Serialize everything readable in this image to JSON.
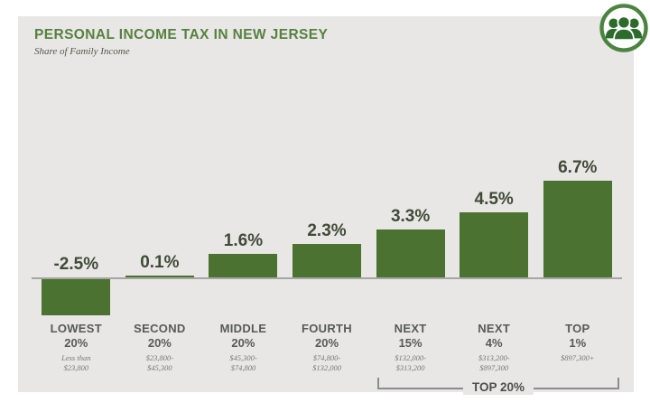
{
  "header": {
    "title": "PERSONAL INCOME TAX IN NEW JERSEY",
    "subtitle": "Share of Family Income"
  },
  "icon": {
    "name": "people-group-icon",
    "ring_color": "#4b8440",
    "glyph_color": "#2d6b2d"
  },
  "colors": {
    "card_background": "#e8e7e5",
    "bar_green": "#4b7231",
    "title_green": "#56813f",
    "value_label": "#3f4a37",
    "category_label": "#58595b",
    "income_range_text": "#77787a",
    "baseline": "#a5a7a3",
    "bracket": "#8a8c8e"
  },
  "chart_data": {
    "type": "bar",
    "title": "PERSONAL INCOME TAX IN NEW JERSEY",
    "subtitle": "Share of Family Income",
    "categories": [
      "LOWEST",
      "SECOND",
      "MIDDLE",
      "FOURTH",
      "NEXT",
      "NEXT",
      "TOP"
    ],
    "group_shares": [
      "20%",
      "20%",
      "20%",
      "20%",
      "15%",
      "4%",
      "1%"
    ],
    "income_ranges": [
      [
        "Less than",
        "$23,800"
      ],
      [
        "$23,800-",
        "$45,300"
      ],
      [
        "$45,300-",
        "$74,800"
      ],
      [
        "$74,800-",
        "$132,000"
      ],
      [
        "$132,000-",
        "$313,200"
      ],
      [
        "$313,200-",
        "$897,300"
      ],
      [
        "$897,300+"
      ]
    ],
    "values": [
      -2.5,
      0.1,
      1.6,
      2.3,
      3.3,
      4.5,
      6.7
    ],
    "value_labels": [
      "-2.5%",
      "0.1%",
      "1.6%",
      "2.3%",
      "3.3%",
      "4.5%",
      "6.7%"
    ],
    "ylabel": "Share of Family Income (%)",
    "ylim": [
      -3,
      7.5
    ],
    "grid": false,
    "legend": null,
    "annotation": {
      "label": "TOP 20%",
      "span_categories": [
        4,
        6
      ]
    }
  },
  "bracket": {
    "label": "TOP 20%"
  }
}
